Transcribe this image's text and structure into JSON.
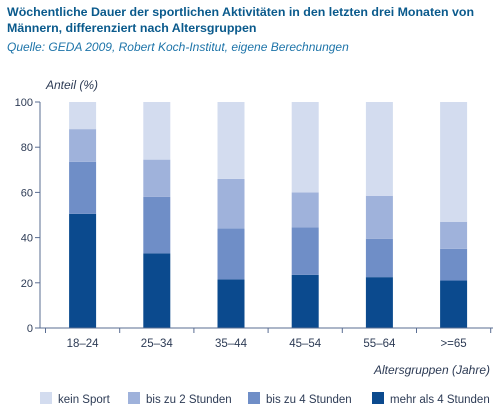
{
  "header": {
    "title_line1": "Wöchentliche Dauer der sportlichen Aktivitäten in den letzten drei Monaten von",
    "title_line2": "Männern, differenziert nach Altersgruppen",
    "source": "Quelle: GEDA 2009, Robert Koch-Institut, eigene Berechnungen"
  },
  "chart_data": {
    "type": "bar",
    "stacked": true,
    "title": "Wöchentliche Dauer der sportlichen Aktivitäten in den letzten drei Monaten von Männern, differenziert nach Altersgruppen",
    "ylabel": "Anteil (%)",
    "xlabel": "Altersgruppen (Jahre)",
    "ylim": [
      0,
      100
    ],
    "yticks": [
      0,
      20,
      40,
      60,
      80,
      100
    ],
    "grid": false,
    "legend_position": "bottom",
    "categories": [
      "18–24",
      "25–34",
      "35–44",
      "45–54",
      "55–64",
      ">=65"
    ],
    "series": [
      {
        "name": "mehr als 4 Stunden",
        "color": "#0b4a8e",
        "values": [
          50.5,
          33,
          21.5,
          23.5,
          22.5,
          21
        ]
      },
      {
        "name": "bis zu 4 Stunden",
        "color": "#6f8ec7",
        "values": [
          23,
          25,
          22.5,
          21,
          17,
          14
        ]
      },
      {
        "name": "bis zu 2 Stunden",
        "color": "#9fb2db",
        "values": [
          14.5,
          16.5,
          22,
          15.5,
          19,
          12
        ]
      },
      {
        "name": "kein Sport",
        "color": "#d3dcef",
        "values": [
          12,
          25.5,
          34,
          40,
          41.5,
          53
        ]
      }
    ]
  }
}
